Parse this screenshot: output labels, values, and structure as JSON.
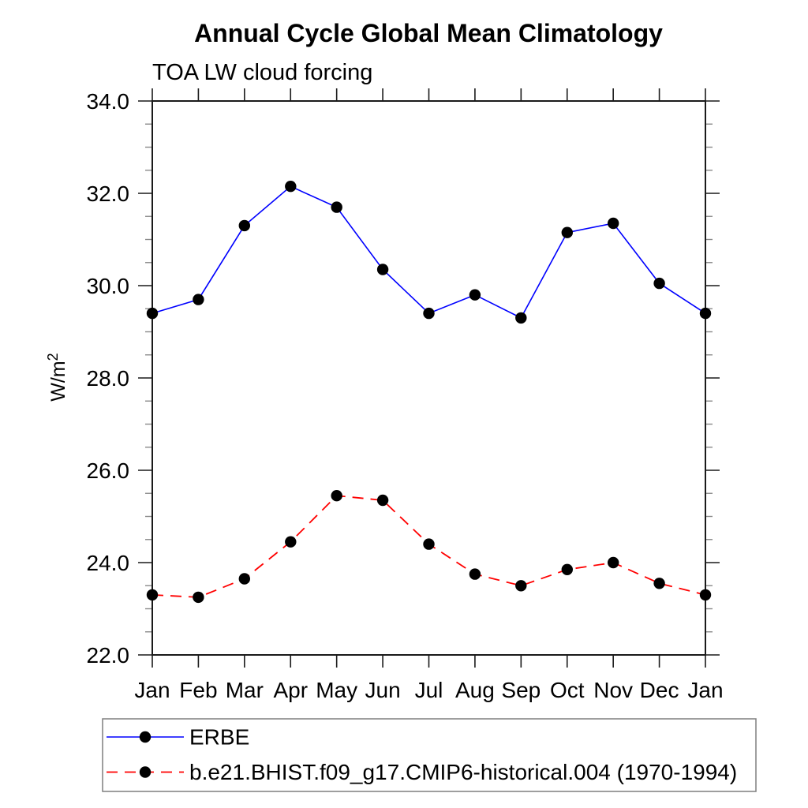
{
  "chart_data": {
    "type": "line",
    "title": "Annual Cycle Global Mean Climatology",
    "subtitle": "TOA LW cloud forcing",
    "ylabel_base": "W/m",
    "ylabel_sup": "2",
    "categories": [
      "Jan",
      "Feb",
      "Mar",
      "Apr",
      "May",
      "Jun",
      "Jul",
      "Aug",
      "Sep",
      "Oct",
      "Nov",
      "Dec",
      "Jan"
    ],
    "ylim": [
      22.0,
      34.0
    ],
    "ytick_labels": [
      "22.0",
      "24.0",
      "26.0",
      "28.0",
      "30.0",
      "32.0",
      "34.0"
    ],
    "ytick_major_step": 2.0,
    "ytick_minor_step": 0.5,
    "grid": false,
    "legend_position": "bottom-left",
    "axis_color": "#1a1a1a",
    "minor_tick_color": "#8a8a8a",
    "legend_border_color": "#7f7f7f",
    "series": [
      {
        "name": "ERBE",
        "line_style": "solid",
        "color": "#0000ff",
        "marker": "filled-circle",
        "marker_color": "#000000",
        "values": [
          29.4,
          29.7,
          31.3,
          32.15,
          31.7,
          30.35,
          29.4,
          29.8,
          29.3,
          31.15,
          31.35,
          30.05,
          29.4
        ]
      },
      {
        "name": "b.e21.BHIST.f09_g17.CMIP6-historical.004 (1970-1994)",
        "line_style": "dashed",
        "color": "#ff0000",
        "marker": "filled-circle",
        "marker_color": "#000000",
        "values": [
          23.3,
          23.25,
          23.65,
          24.45,
          25.45,
          25.35,
          24.4,
          23.75,
          23.5,
          23.85,
          24.0,
          23.55,
          23.3
        ]
      }
    ]
  }
}
